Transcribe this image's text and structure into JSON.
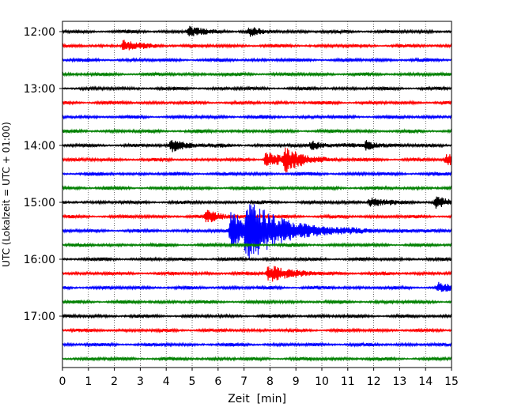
{
  "chart_data": {
    "type": "line",
    "title": "",
    "xlabel": "Zeit  [min]",
    "ylabel": "UTC (Lokalzeit = UTC + 01:00)",
    "xlim": [
      0,
      15
    ],
    "x_ticks": [
      "0",
      "1",
      "2",
      "3",
      "4",
      "5",
      "6",
      "7",
      "8",
      "9",
      "10",
      "11",
      "12",
      "13",
      "14",
      "15"
    ],
    "y_ticks": [
      "12:00",
      "13:00",
      "14:00",
      "15:00",
      "16:00",
      "17:00"
    ],
    "grid_x": true,
    "trace_colors_cycle": [
      "#000000",
      "#ff0000",
      "#0000ff",
      "#008000"
    ],
    "traces": [
      {
        "start": "12:00",
        "events": [
          {
            "t": 4.9,
            "amp": 0.45
          },
          {
            "t": 7.2,
            "amp": 0.35
          }
        ]
      },
      {
        "start": "12:15",
        "events": [
          {
            "t": 2.35,
            "amp": 0.5
          }
        ]
      },
      {
        "start": "12:30",
        "events": []
      },
      {
        "start": "12:45",
        "events": []
      },
      {
        "start": "13:00",
        "events": []
      },
      {
        "start": "13:15",
        "events": []
      },
      {
        "start": "13:30",
        "events": []
      },
      {
        "start": "13:45",
        "events": []
      },
      {
        "start": "14:00",
        "events": [
          {
            "t": 4.2,
            "amp": 0.55
          },
          {
            "t": 9.6,
            "amp": 0.45
          },
          {
            "t": 11.7,
            "amp": 0.4
          }
        ]
      },
      {
        "start": "14:15",
        "events": [
          {
            "t": 7.85,
            "amp": 0.7
          },
          {
            "t": 8.6,
            "amp": 0.85
          },
          {
            "t": 14.8,
            "amp": 0.5
          }
        ]
      },
      {
        "start": "14:30",
        "events": []
      },
      {
        "start": "14:45",
        "events": []
      },
      {
        "start": "15:00",
        "events": [
          {
            "t": 11.85,
            "amp": 0.45
          },
          {
            "t": 14.4,
            "amp": 0.5
          }
        ]
      },
      {
        "start": "15:15",
        "events": [
          {
            "t": 5.55,
            "amp": 0.55
          }
        ]
      },
      {
        "start": "15:30",
        "events": [
          {
            "t": 6.5,
            "amp": 1.6
          },
          {
            "t": 7.1,
            "amp": 2.0
          }
        ]
      },
      {
        "start": "15:45",
        "events": []
      },
      {
        "start": "16:00",
        "events": []
      },
      {
        "start": "16:15",
        "events": [
          {
            "t": 7.95,
            "amp": 0.85
          }
        ]
      },
      {
        "start": "16:30",
        "events": [
          {
            "t": 14.5,
            "amp": 0.4
          }
        ]
      },
      {
        "start": "16:45",
        "events": []
      },
      {
        "start": "17:00",
        "events": []
      },
      {
        "start": "17:15",
        "events": []
      },
      {
        "start": "17:30",
        "events": []
      },
      {
        "start": "17:45",
        "events": []
      }
    ]
  }
}
